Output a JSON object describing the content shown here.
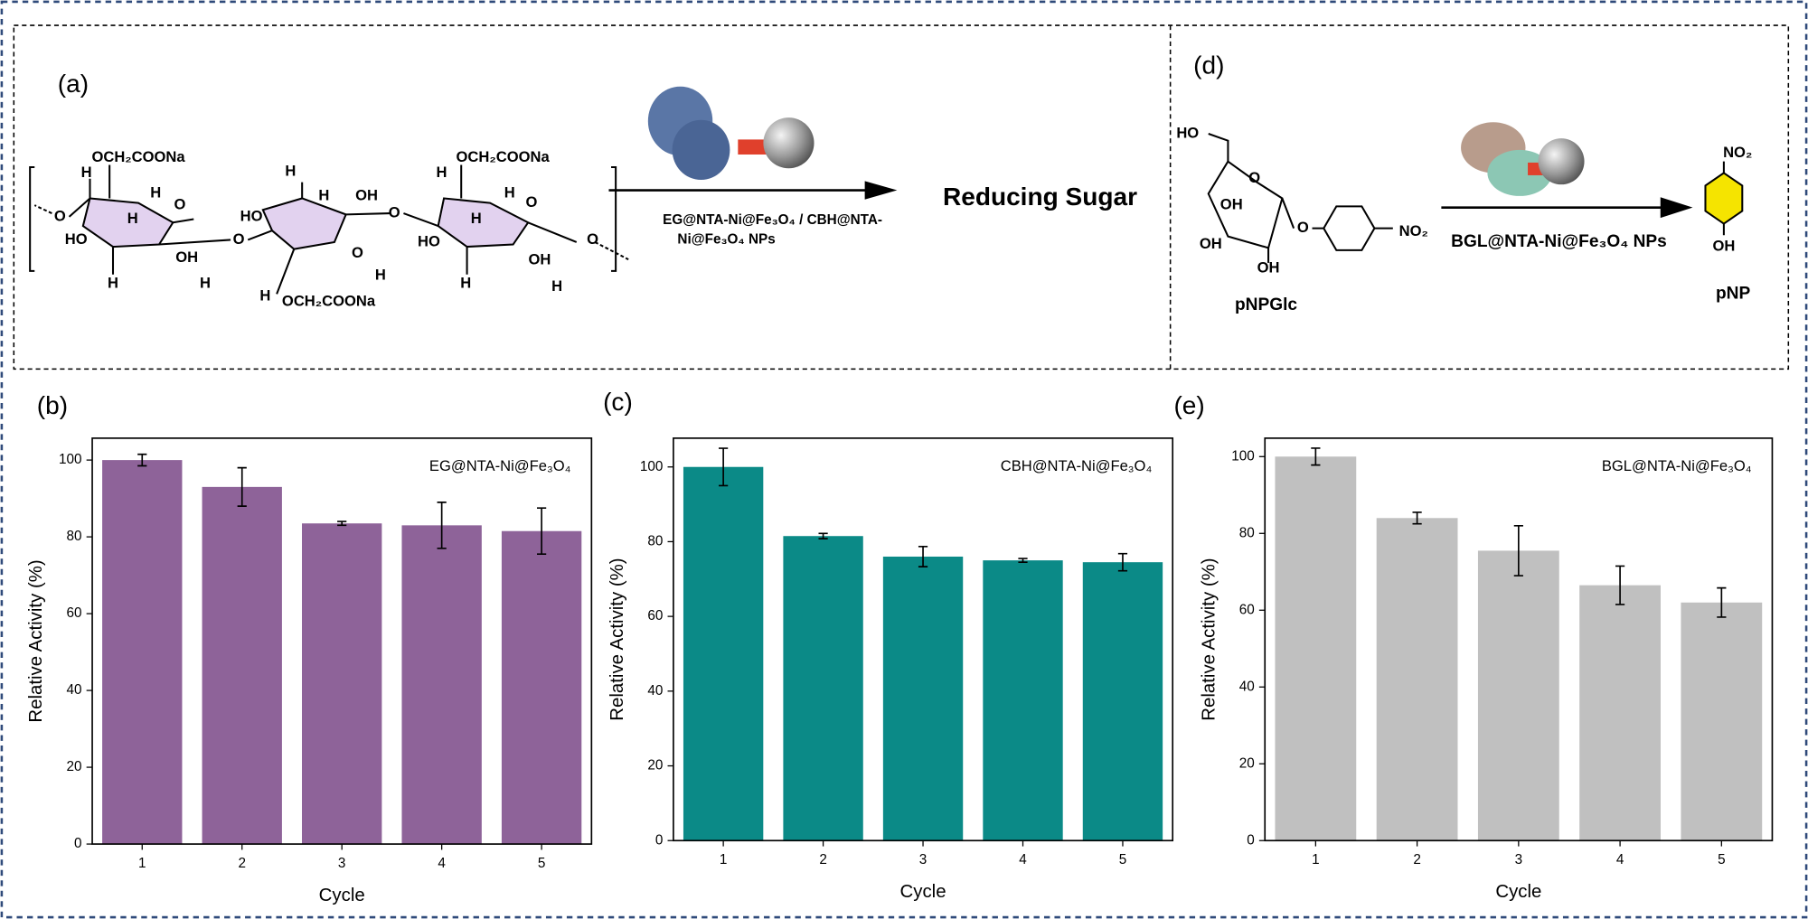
{
  "scheme_a": {
    "label": "(a)",
    "arrow_label_1": "EG@NTA-Ni@Fe₃O₄ / CBH@NTA-",
    "arrow_label_2": "Ni@Fe₃O₄ NPs",
    "product": "Reducing Sugar",
    "atoms": [
      "OCH₂COONa",
      "OCH₂COONa",
      "OCH₂COONa",
      "H",
      "H",
      "H",
      "H",
      "H",
      "H",
      "H",
      "H",
      "H",
      "H",
      "H",
      "H",
      "H",
      "H",
      "O",
      "O",
      "O",
      "O",
      "O",
      "O",
      "O",
      "HO",
      "OH",
      "HO",
      "OH",
      "HO",
      "OH"
    ]
  },
  "scheme_d": {
    "label": "(d)",
    "arrow_label": "BGL@NTA-Ni@Fe₃O₄ NPs",
    "substrate": "pNPGlc",
    "product": "pNP",
    "atoms": [
      "HO",
      "O",
      "OH",
      "OH",
      "OH",
      "O",
      "NO₂",
      "NO₂",
      "OH"
    ]
  },
  "chart_data": [
    {
      "type": "bar",
      "label": "(b)",
      "xlabel": "Cycle",
      "ylabel": "Relative Activity (%)",
      "categories": [
        "1",
        "2",
        "3",
        "4",
        "5"
      ],
      "series": [
        {
          "name": "EG@NTA-Ni@Fe₃O₄",
          "color": "#8e6399",
          "values": [
            100,
            93,
            83.5,
            83,
            81.5
          ],
          "errors": [
            1.5,
            5,
            0.5,
            6,
            6
          ]
        }
      ],
      "ylim": [
        0,
        105.7
      ],
      "yticks": [
        0,
        20,
        40,
        60,
        80,
        100
      ]
    },
    {
      "type": "bar",
      "label": "(c)",
      "xlabel": "Cycle",
      "ylabel": "Relative Activity (%)",
      "categories": [
        "1",
        "2",
        "3",
        "4",
        "5"
      ],
      "series": [
        {
          "name": "CBH@NTA-Ni@Fe₃O₄",
          "color": "#0b8a87",
          "values": [
            100,
            81.5,
            76,
            75,
            74.5
          ],
          "errors": [
            5,
            0.7,
            2.7,
            0.5,
            2.3
          ]
        }
      ],
      "ylim": [
        0,
        107.7
      ],
      "yticks": [
        0,
        20,
        40,
        60,
        80,
        100
      ]
    },
    {
      "type": "bar",
      "label": "(e)",
      "xlabel": "Cycle",
      "ylabel": "Relative Activity (%)",
      "categories": [
        "1",
        "2",
        "3",
        "4",
        "5"
      ],
      "series": [
        {
          "name": "BGL@NTA-Ni@Fe₃O₄",
          "color": "#c0c0c0",
          "values": [
            100,
            84,
            75.5,
            66.5,
            62
          ],
          "errors": [
            2.2,
            1.5,
            6.5,
            5,
            3.8
          ]
        }
      ],
      "ylim": [
        0,
        104.8
      ],
      "yticks": [
        0,
        20,
        40,
        60,
        80,
        100
      ]
    }
  ]
}
